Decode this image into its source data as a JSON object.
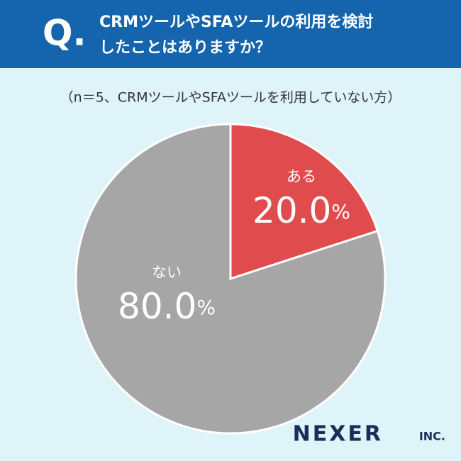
{
  "chart_data": {
    "type": "pie",
    "header_label": "Q.",
    "title": [
      "CRMツールやSFAツールの利用を検討",
      "したことはありますか？"
    ],
    "subtitle": "（n＝5、CRMツールやSFAツールを利用していない方）",
    "categories": [
      "ある",
      "ない"
    ],
    "values": [
      20.0,
      80.0
    ],
    "value_labels": [
      "20.0%",
      "80.0%"
    ],
    "colors": [
      "#e04b4d",
      "#a6a6a6"
    ],
    "logo": "NEXER",
    "logo_suffix": "INC."
  }
}
